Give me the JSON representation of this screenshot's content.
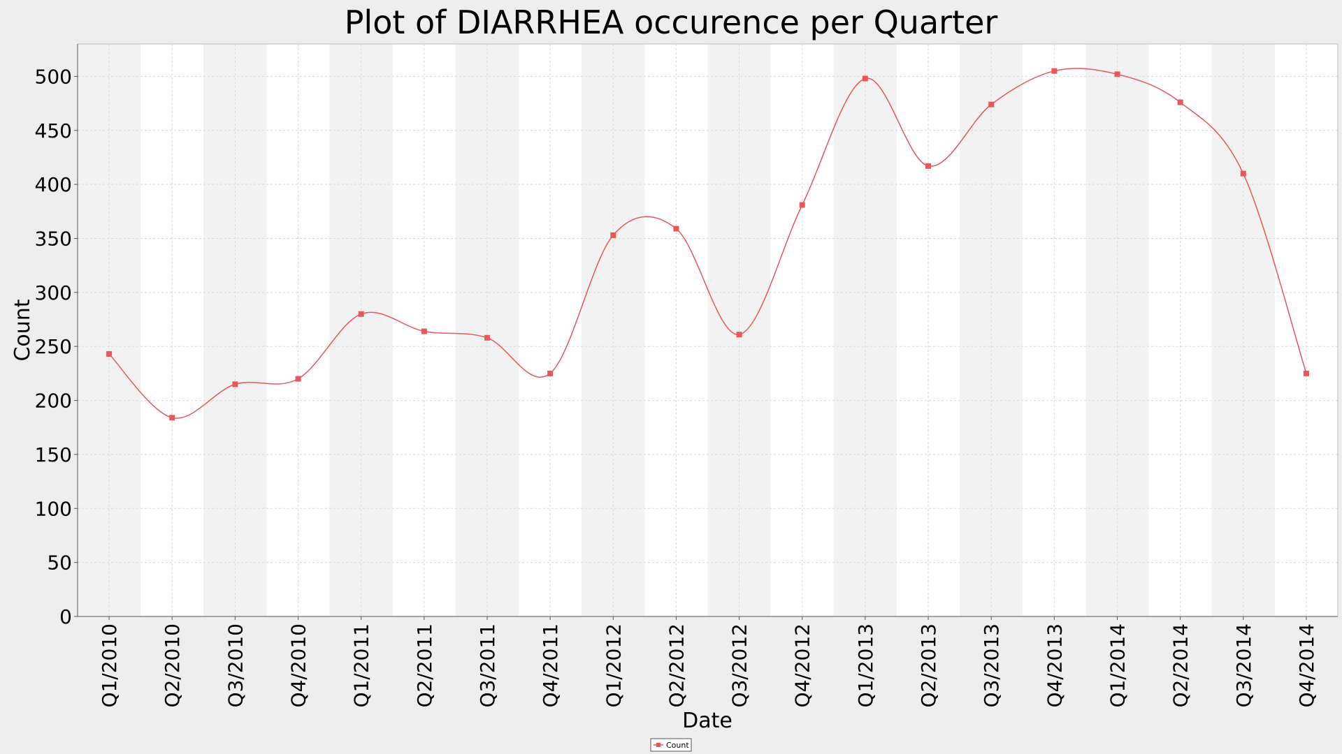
{
  "chart_data": {
    "type": "line",
    "title": "Plot of DIARRHEA occurence per Quarter",
    "xlabel": "Date",
    "ylabel": "Count",
    "ylim": [
      0,
      530
    ],
    "yticks": [
      0,
      50,
      100,
      150,
      200,
      250,
      300,
      350,
      400,
      450,
      500
    ],
    "grid": true,
    "alternating_bands": true,
    "legend_position": "bottom-center",
    "categories": [
      "Q1/2010",
      "Q2/2010",
      "Q3/2010",
      "Q4/2010",
      "Q1/2011",
      "Q2/2011",
      "Q3/2011",
      "Q4/2011",
      "Q1/2012",
      "Q2/2012",
      "Q3/2012",
      "Q4/2012",
      "Q1/2013",
      "Q2/2013",
      "Q3/2013",
      "Q4/2013",
      "Q1/2014",
      "Q2/2014",
      "Q3/2014",
      "Q4/2014"
    ],
    "series": [
      {
        "name": "Count",
        "color": "#e8575a",
        "values": [
          243,
          184,
          215,
          220,
          280,
          264,
          258,
          225,
          353,
          359,
          261,
          381,
          498,
          417,
          474,
          505,
          502,
          476,
          410,
          225
        ]
      }
    ]
  }
}
